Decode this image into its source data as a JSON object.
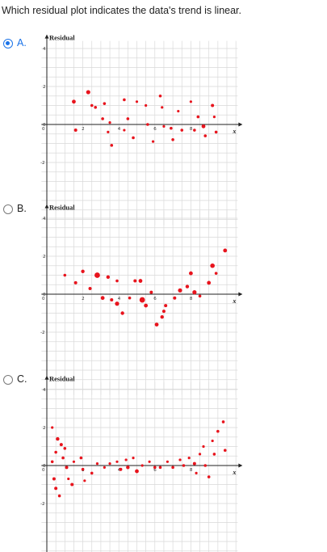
{
  "question": "Which residual plot indicates the data's trend is linear.",
  "options": [
    {
      "letter": "A.",
      "selected": true
    },
    {
      "letter": "B.",
      "selected": false
    },
    {
      "letter": "C.",
      "selected": false
    }
  ],
  "colors": {
    "points": "#e8141d",
    "selected": "#1a73e8",
    "grid": "#d9d9d9"
  },
  "chart_data": [
    {
      "type": "scatter",
      "title": "",
      "ylabel": "Residual",
      "xlabel": "x",
      "xlim": [
        -0.3,
        10.6
      ],
      "ylim": [
        -5.3,
        4.4
      ],
      "grid": true,
      "x_ticks": [
        "2",
        "4",
        "6",
        "8"
      ],
      "y_ticks": [
        "4",
        "2",
        "0",
        "-2"
      ],
      "points": [
        {
          "x": 1.5,
          "y": 1.2,
          "r": 1.2
        },
        {
          "x": 1.6,
          "y": -0.3,
          "r": 1.0
        },
        {
          "x": 2.3,
          "y": 1.7,
          "r": 1.3
        },
        {
          "x": 2.5,
          "y": 1.0,
          "r": 0.9
        },
        {
          "x": 2.7,
          "y": 0.9,
          "r": 0.9
        },
        {
          "x": 3.2,
          "y": 1.1,
          "r": 0.9
        },
        {
          "x": 3.1,
          "y": 0.3,
          "r": 0.9
        },
        {
          "x": 3.5,
          "y": 0.1,
          "r": 0.8
        },
        {
          "x": 3.4,
          "y": -0.4,
          "r": 0.8
        },
        {
          "x": 3.6,
          "y": -1.1,
          "r": 0.9
        },
        {
          "x": 4.3,
          "y": 1.3,
          "r": 0.9
        },
        {
          "x": 4.5,
          "y": 0.3,
          "r": 0.9
        },
        {
          "x": 4.3,
          "y": -0.3,
          "r": 0.8
        },
        {
          "x": 4.8,
          "y": -0.7,
          "r": 0.9
        },
        {
          "x": 5.0,
          "y": 1.2,
          "r": 0.8
        },
        {
          "x": 5.5,
          "y": 1.0,
          "r": 0.8
        },
        {
          "x": 5.6,
          "y": 0.0,
          "r": 0.9
        },
        {
          "x": 5.9,
          "y": -0.9,
          "r": 0.8
        },
        {
          "x": 6.3,
          "y": 1.5,
          "r": 0.9
        },
        {
          "x": 6.4,
          "y": 0.9,
          "r": 0.8
        },
        {
          "x": 6.5,
          "y": -0.1,
          "r": 0.8
        },
        {
          "x": 6.9,
          "y": -0.2,
          "r": 0.9
        },
        {
          "x": 7.0,
          "y": -0.8,
          "r": 0.9
        },
        {
          "x": 7.3,
          "y": 0.7,
          "r": 0.8
        },
        {
          "x": 7.5,
          "y": -0.3,
          "r": 0.9
        },
        {
          "x": 8.0,
          "y": 1.2,
          "r": 0.8
        },
        {
          "x": 8.2,
          "y": -0.3,
          "r": 0.9
        },
        {
          "x": 8.4,
          "y": 0.4,
          "r": 0.9
        },
        {
          "x": 8.7,
          "y": -0.1,
          "r": 1.2
        },
        {
          "x": 8.8,
          "y": -0.6,
          "r": 0.9
        },
        {
          "x": 9.2,
          "y": 1.0,
          "r": 1.0
        },
        {
          "x": 9.3,
          "y": 0.4,
          "r": 0.8
        },
        {
          "x": 9.4,
          "y": -0.4,
          "r": 0.9
        }
      ]
    },
    {
      "type": "scatter",
      "title": "",
      "ylabel": "Residual",
      "xlabel": "x",
      "xlim": [
        -0.3,
        10.6
      ],
      "ylim": [
        -5.3,
        4.4
      ],
      "grid": true,
      "x_ticks": [
        "2",
        "4",
        "6",
        "8"
      ],
      "y_ticks": [
        "4",
        "2",
        "0",
        "-2"
      ],
      "points": [
        {
          "x": 1.0,
          "y": 1.0,
          "r": 0.9
        },
        {
          "x": 1.6,
          "y": 0.6,
          "r": 1.0
        },
        {
          "x": 2.0,
          "y": 1.2,
          "r": 1.1
        },
        {
          "x": 2.4,
          "y": 0.3,
          "r": 1.0
        },
        {
          "x": 2.8,
          "y": 1.0,
          "r": 1.7
        },
        {
          "x": 3.1,
          "y": -0.2,
          "r": 1.2
        },
        {
          "x": 3.4,
          "y": 0.9,
          "r": 1.1
        },
        {
          "x": 3.6,
          "y": -0.3,
          "r": 1.0
        },
        {
          "x": 3.9,
          "y": 0.7,
          "r": 0.9
        },
        {
          "x": 3.9,
          "y": -0.5,
          "r": 1.3
        },
        {
          "x": 4.2,
          "y": -1.0,
          "r": 1.1
        },
        {
          "x": 4.6,
          "y": -0.2,
          "r": 0.9
        },
        {
          "x": 4.9,
          "y": 0.7,
          "r": 1.0
        },
        {
          "x": 5.2,
          "y": 0.7,
          "r": 1.2
        },
        {
          "x": 5.3,
          "y": -0.3,
          "r": 1.7
        },
        {
          "x": 5.5,
          "y": -0.6,
          "r": 1.2
        },
        {
          "x": 5.8,
          "y": 0.1,
          "r": 1.0
        },
        {
          "x": 6.1,
          "y": -1.6,
          "r": 1.2
        },
        {
          "x": 6.6,
          "y": -0.6,
          "r": 1.0
        },
        {
          "x": 6.5,
          "y": -0.9,
          "r": 1.0
        },
        {
          "x": 6.4,
          "y": -1.2,
          "r": 1.1
        },
        {
          "x": 7.1,
          "y": -0.2,
          "r": 1.0
        },
        {
          "x": 7.4,
          "y": 0.2,
          "r": 1.3
        },
        {
          "x": 7.8,
          "y": 0.4,
          "r": 1.1
        },
        {
          "x": 8.0,
          "y": 1.1,
          "r": 1.2
        },
        {
          "x": 8.2,
          "y": 0.1,
          "r": 1.3
        },
        {
          "x": 8.5,
          "y": -0.1,
          "r": 0.9
        },
        {
          "x": 9.0,
          "y": 0.6,
          "r": 1.2
        },
        {
          "x": 9.2,
          "y": 1.5,
          "r": 1.4
        },
        {
          "x": 9.4,
          "y": 1.1,
          "r": 0.9
        },
        {
          "x": 9.9,
          "y": 2.3,
          "r": 1.2
        }
      ]
    },
    {
      "type": "scatter",
      "title": "",
      "ylabel": "Residual",
      "xlabel": "x",
      "xlim": [
        -0.3,
        10.6
      ],
      "ylim": [
        -5.3,
        4.4
      ],
      "grid": true,
      "x_ticks": [
        "2",
        "4",
        "6",
        "8"
      ],
      "y_ticks": [
        "4",
        "2",
        "0",
        "-2"
      ],
      "points": [
        {
          "x": 0.3,
          "y": 2.0,
          "r": 0.8
        },
        {
          "x": 0.6,
          "y": 1.4,
          "r": 1.1
        },
        {
          "x": 0.8,
          "y": 1.1,
          "r": 1.0
        },
        {
          "x": 0.5,
          "y": 0.7,
          "r": 0.9
        },
        {
          "x": 0.3,
          "y": 0.2,
          "r": 0.9
        },
        {
          "x": 0.9,
          "y": 0.4,
          "r": 0.9
        },
        {
          "x": 1.0,
          "y": 0.9,
          "r": 0.9
        },
        {
          "x": 1.1,
          "y": -0.1,
          "r": 1.0
        },
        {
          "x": 0.4,
          "y": -0.7,
          "r": 1.0
        },
        {
          "x": 0.5,
          "y": -1.2,
          "r": 1.0
        },
        {
          "x": 0.7,
          "y": -1.6,
          "r": 0.9
        },
        {
          "x": 1.2,
          "y": -0.7,
          "r": 0.8
        },
        {
          "x": 1.4,
          "y": -1.0,
          "r": 1.0
        },
        {
          "x": 1.5,
          "y": 0.2,
          "r": 0.8
        },
        {
          "x": 1.9,
          "y": 0.4,
          "r": 0.9
        },
        {
          "x": 2.0,
          "y": -0.2,
          "r": 0.9
        },
        {
          "x": 2.1,
          "y": -0.8,
          "r": 0.8
        },
        {
          "x": 2.5,
          "y": -0.4,
          "r": 0.9
        },
        {
          "x": 2.8,
          "y": 0.1,
          "r": 0.8
        },
        {
          "x": 3.2,
          "y": -0.1,
          "r": 0.8
        },
        {
          "x": 3.5,
          "y": 0.1,
          "r": 0.8
        },
        {
          "x": 3.9,
          "y": 0.2,
          "r": 0.8
        },
        {
          "x": 4.1,
          "y": -0.2,
          "r": 1.0
        },
        {
          "x": 4.4,
          "y": 0.3,
          "r": 0.8
        },
        {
          "x": 4.5,
          "y": -0.1,
          "r": 1.1
        },
        {
          "x": 4.8,
          "y": 0.4,
          "r": 0.8
        },
        {
          "x": 5.0,
          "y": -0.3,
          "r": 1.2
        },
        {
          "x": 5.3,
          "y": 0.0,
          "r": 0.8
        },
        {
          "x": 5.7,
          "y": 0.2,
          "r": 0.8
        },
        {
          "x": 6.0,
          "y": -0.1,
          "r": 0.9
        },
        {
          "x": 6.3,
          "y": -0.1,
          "r": 0.9
        },
        {
          "x": 6.7,
          "y": 0.2,
          "r": 0.8
        },
        {
          "x": 7.0,
          "y": -0.1,
          "r": 0.9
        },
        {
          "x": 7.4,
          "y": 0.3,
          "r": 0.8
        },
        {
          "x": 7.6,
          "y": 0.0,
          "r": 0.9
        },
        {
          "x": 7.9,
          "y": 0.4,
          "r": 0.8
        },
        {
          "x": 8.2,
          "y": 0.1,
          "r": 1.0
        },
        {
          "x": 8.3,
          "y": -0.4,
          "r": 0.8
        },
        {
          "x": 8.5,
          "y": 0.6,
          "r": 0.8
        },
        {
          "x": 8.7,
          "y": 1.0,
          "r": 0.8
        },
        {
          "x": 8.8,
          "y": 0.0,
          "r": 0.9
        },
        {
          "x": 9.0,
          "y": -0.6,
          "r": 0.9
        },
        {
          "x": 9.2,
          "y": 1.3,
          "r": 0.8
        },
        {
          "x": 9.3,
          "y": 0.6,
          "r": 0.9
        },
        {
          "x": 9.5,
          "y": 1.8,
          "r": 0.9
        },
        {
          "x": 9.8,
          "y": 2.3,
          "r": 0.9
        },
        {
          "x": 9.9,
          "y": 0.8,
          "r": 0.9
        }
      ]
    }
  ]
}
